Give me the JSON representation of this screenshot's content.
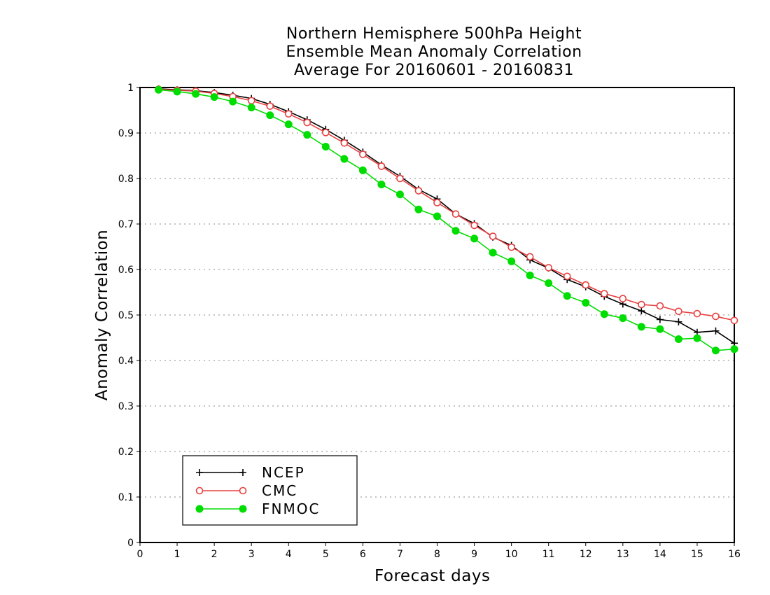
{
  "chart_data": {
    "type": "line",
    "title": [
      "Northern Hemisphere 500hPa Height",
      "Ensemble Mean Anomaly Correlation",
      "Average For 20160601 - 20160831"
    ],
    "xlabel": "Forecast days",
    "ylabel": "Anomaly Correlation",
    "xlim": [
      0,
      16
    ],
    "ylim": [
      0,
      1
    ],
    "xticks": [
      0,
      1,
      2,
      3,
      4,
      5,
      6,
      7,
      8,
      9,
      10,
      11,
      12,
      13,
      14,
      15,
      16
    ],
    "xtick_labels": [
      "0",
      "1",
      "2",
      "3",
      "4",
      "5",
      "6",
      "7",
      "8",
      "9",
      "10",
      "11",
      "12",
      "13",
      "14",
      "15",
      "16"
    ],
    "yticks": [
      0,
      0.1,
      0.2,
      0.3,
      0.4,
      0.5,
      0.6,
      0.7,
      0.8,
      0.9,
      1
    ],
    "ytick_labels": [
      "0",
      "0.1",
      "0.2",
      "0.3",
      "0.4",
      "0.5",
      "0.6",
      "0.7",
      "0.8",
      "0.9",
      "1"
    ],
    "grid": "dotted horizontal",
    "legend_position": "bottom-left",
    "x": [
      0.5,
      1,
      1.5,
      2,
      2.5,
      3,
      3.5,
      4,
      4.5,
      5,
      5.5,
      6,
      6.5,
      7,
      7.5,
      8,
      8.5,
      9,
      9.5,
      10,
      10.5,
      11,
      11.5,
      12,
      12.5,
      13,
      13.5,
      14,
      14.5,
      15,
      15.5,
      16
    ],
    "series": [
      {
        "name": "NCEP",
        "color": "#000000",
        "marker": "plus",
        "values": [
          0.997,
          0.995,
          0.993,
          0.989,
          0.983,
          0.976,
          0.963,
          0.947,
          0.929,
          0.908,
          0.884,
          0.858,
          0.83,
          0.805,
          0.776,
          0.755,
          0.722,
          0.701,
          0.671,
          0.653,
          0.621,
          0.603,
          0.578,
          0.562,
          0.541,
          0.524,
          0.509,
          0.49,
          0.485,
          0.462,
          0.465,
          0.438
        ]
      },
      {
        "name": "CMC",
        "color": "#e84040",
        "marker": "open-circle",
        "values": [
          0.996,
          0.994,
          0.992,
          0.987,
          0.98,
          0.971,
          0.959,
          0.942,
          0.923,
          0.901,
          0.878,
          0.853,
          0.827,
          0.8,
          0.773,
          0.747,
          0.722,
          0.697,
          0.673,
          0.649,
          0.628,
          0.604,
          0.585,
          0.566,
          0.547,
          0.536,
          0.523,
          0.52,
          0.508,
          0.503,
          0.497,
          0.488
        ]
      },
      {
        "name": "FNMOC",
        "color": "#00dd00",
        "marker": "filled-circle",
        "values": [
          0.995,
          0.991,
          0.986,
          0.979,
          0.969,
          0.956,
          0.939,
          0.919,
          0.896,
          0.87,
          0.843,
          0.818,
          0.787,
          0.765,
          0.732,
          0.717,
          0.685,
          0.668,
          0.637,
          0.618,
          0.587,
          0.57,
          0.542,
          0.527,
          0.502,
          0.493,
          0.474,
          0.469,
          0.447,
          0.449,
          0.422,
          0.425
        ]
      }
    ]
  }
}
